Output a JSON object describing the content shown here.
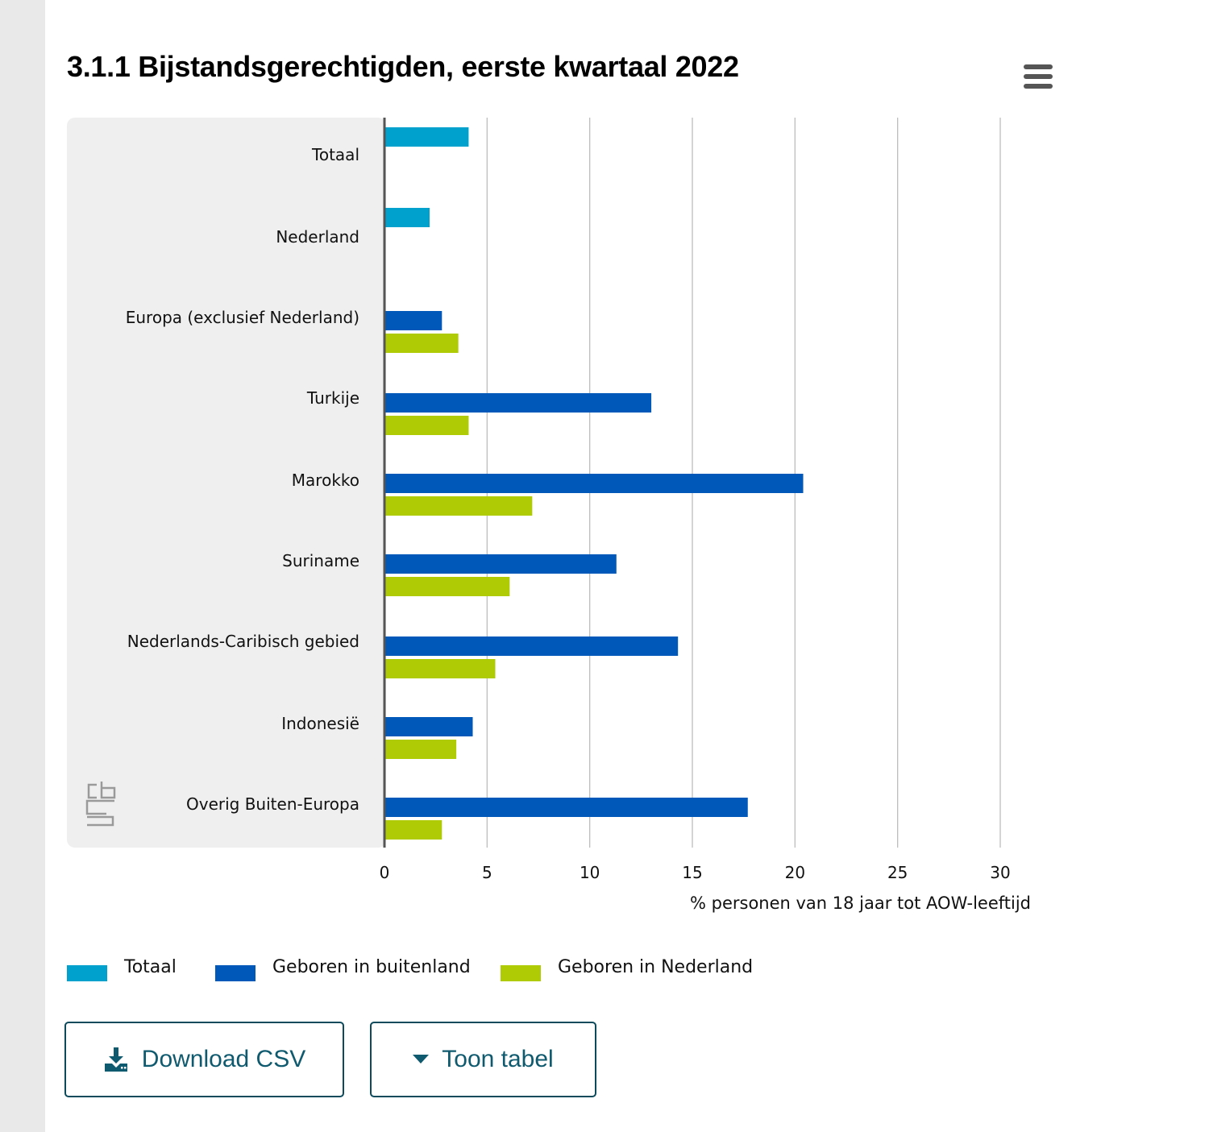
{
  "title": "3.1.1 Bijstandsgerechtigden, eerste kwartaal 2022",
  "menu_icon": "hamburger-menu-icon",
  "logo_icon": "cbs-logo",
  "colors": {
    "Totaal": "#00a1cd",
    "Geboren in buitenland": "#0058b8",
    "Geboren in Nederland": "#afcb05",
    "plot_background": "#efefef",
    "button_text": "#0f5a6e"
  },
  "chart_data": {
    "type": "bar",
    "orientation": "horizontal",
    "title": "3.1.1 Bijstandsgerechtigden, eerste kwartaal 2022",
    "xlabel": "% personen van 18 jaar tot AOW-leeftijd",
    "ylabel": "",
    "xlim": [
      0,
      30
    ],
    "xticks": [
      0,
      5,
      10,
      15,
      20,
      25,
      30
    ],
    "grid": true,
    "legend_position": "bottom",
    "categories": [
      "Totaal",
      "Nederland",
      "Europa (exclusief Nederland)",
      "Turkije",
      "Marokko",
      "Suriname",
      "Nederlands-Caribisch gebied",
      "Indonesië",
      "Overig Buiten-Europa"
    ],
    "series": [
      {
        "name": "Totaal",
        "values": [
          4.1,
          2.2,
          null,
          null,
          null,
          null,
          null,
          null,
          null
        ]
      },
      {
        "name": "Geboren in buitenland",
        "values": [
          null,
          null,
          2.8,
          13.0,
          20.4,
          11.3,
          14.3,
          4.3,
          17.7
        ]
      },
      {
        "name": "Geboren in Nederland",
        "values": [
          null,
          null,
          3.6,
          4.1,
          7.2,
          6.1,
          5.4,
          3.5,
          2.8
        ]
      }
    ]
  },
  "buttons": {
    "download_label": "Download CSV",
    "download_icon": "download-icon",
    "table_label": "Toon tabel",
    "table_icon": "caret-down-icon"
  }
}
